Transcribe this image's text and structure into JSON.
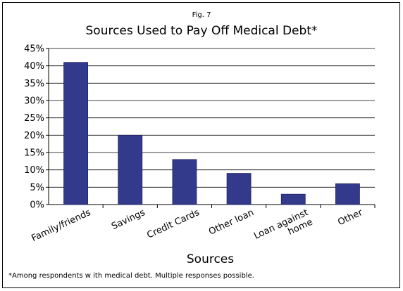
{
  "figure": {
    "fig_label": "Fig. 7",
    "footnote": "*Among respondents w ith medical debt. Multiple responses possible."
  },
  "colors": {
    "bar": "#333a8c",
    "bar_outline": "#1e2360",
    "grid": "#000000",
    "text": "#000000"
  },
  "chart_data": {
    "type": "bar",
    "title": "Sources Used to Pay Off Medical Debt*",
    "xlabel": "Sources",
    "ylabel": "",
    "categories": [
      [
        "Family/friends"
      ],
      [
        "Savings"
      ],
      [
        "Credit Cards"
      ],
      [
        "Other loan"
      ],
      [
        "Loan against",
        "home"
      ],
      [
        "Other"
      ]
    ],
    "values": [
      41,
      20,
      13,
      9,
      3,
      6
    ],
    "ylim": [
      0,
      45
    ],
    "yticks": [
      0,
      5,
      10,
      15,
      20,
      25,
      30,
      35,
      40,
      45
    ],
    "ytick_suffix": "%",
    "grid": true,
    "legend": "none"
  }
}
